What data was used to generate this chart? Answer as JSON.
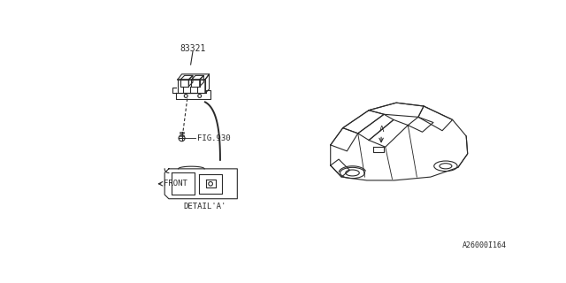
{
  "bg_color": "#ffffff",
  "line_color": "#2a2a2a",
  "diagram_id": "A26000I164",
  "part_number": "83321",
  "fig_ref": "FIG.930",
  "detail_label": "DETAIL'A'",
  "front_label": "FRONT"
}
